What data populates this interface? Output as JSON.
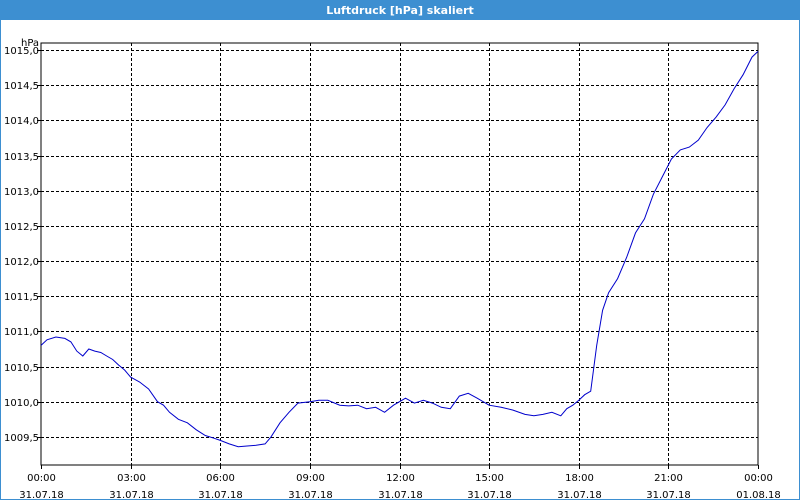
{
  "window": {
    "title": "Luftdruck [hPa] skaliert"
  },
  "colors": {
    "titlebar": "#3d8fd1",
    "series": "#0000cc",
    "grid": "#000000"
  },
  "chart_data": {
    "type": "line",
    "title": "Luftdruck [hPa] skaliert",
    "ylabel": "hPa",
    "xlabel": "",
    "ylim": [
      1009.1,
      1015.1
    ],
    "xlim": [
      0,
      24
    ],
    "grid": true,
    "y_ticks": [
      {
        "value": 1009.5,
        "label": "1009,5"
      },
      {
        "value": 1010.0,
        "label": "1010,0"
      },
      {
        "value": 1010.5,
        "label": "1010,5"
      },
      {
        "value": 1011.0,
        "label": "1011,0"
      },
      {
        "value": 1011.5,
        "label": "1011,5"
      },
      {
        "value": 1012.0,
        "label": "1012,0"
      },
      {
        "value": 1012.5,
        "label": "1012,5"
      },
      {
        "value": 1013.0,
        "label": "1013,0"
      },
      {
        "value": 1013.5,
        "label": "1013,5"
      },
      {
        "value": 1014.0,
        "label": "1014,0"
      },
      {
        "value": 1014.5,
        "label": "1014,5"
      },
      {
        "value": 1015.0,
        "label": "1015,0"
      }
    ],
    "x_ticks": [
      {
        "value": 0,
        "time": "00:00",
        "date": "31.07.18"
      },
      {
        "value": 3,
        "time": "03:00",
        "date": "31.07.18"
      },
      {
        "value": 6,
        "time": "06:00",
        "date": "31.07.18"
      },
      {
        "value": 9,
        "time": "09:00",
        "date": "31.07.18"
      },
      {
        "value": 12,
        "time": "12:00",
        "date": "31.07.18"
      },
      {
        "value": 15,
        "time": "15:00",
        "date": "31.07.18"
      },
      {
        "value": 18,
        "time": "18:00",
        "date": "31.07.18"
      },
      {
        "value": 21,
        "time": "21:00",
        "date": "31.07.18"
      },
      {
        "value": 24,
        "time": "00:00",
        "date": "01.08.18"
      }
    ],
    "series": [
      {
        "x": [
          0.0,
          0.2,
          0.5,
          0.8,
          1.0,
          1.2,
          1.4,
          1.6,
          1.8,
          2.0,
          2.2,
          2.4,
          2.6,
          2.8,
          3.0,
          3.3,
          3.6,
          3.9,
          4.1,
          4.3,
          4.6,
          4.9,
          5.2,
          5.5,
          5.8,
          6.0,
          6.3,
          6.6,
          6.9,
          7.2,
          7.5,
          7.7,
          8.0,
          8.3,
          8.6,
          9.0,
          9.3,
          9.6,
          10.0,
          10.3,
          10.6,
          10.9,
          11.2,
          11.5,
          11.8,
          12.2,
          12.5,
          12.8,
          13.1,
          13.4,
          13.7,
          14.0,
          14.3,
          14.6,
          15.0,
          15.4,
          15.8,
          16.2,
          16.5,
          16.8,
          17.1,
          17.4,
          17.6,
          17.8,
          18.0,
          18.2,
          18.4,
          18.6,
          18.8,
          19.0,
          19.3,
          19.6,
          19.9,
          20.2,
          20.5,
          20.8,
          21.1,
          21.4,
          21.7,
          22.0,
          22.3,
          22.6,
          22.9,
          23.2,
          23.5,
          23.8,
          24.0
        ],
        "values": [
          1010.8,
          1010.88,
          1010.92,
          1010.9,
          1010.85,
          1010.72,
          1010.65,
          1010.75,
          1010.72,
          1010.7,
          1010.65,
          1010.6,
          1010.52,
          1010.45,
          1010.35,
          1010.28,
          1010.18,
          1010.0,
          1009.95,
          1009.85,
          1009.75,
          1009.7,
          1009.6,
          1009.52,
          1009.48,
          1009.45,
          1009.4,
          1009.36,
          1009.37,
          1009.38,
          1009.4,
          1009.5,
          1009.7,
          1009.85,
          1009.98,
          1010.0,
          1010.02,
          1010.02,
          1009.95,
          1009.94,
          1009.95,
          1009.9,
          1009.92,
          1009.85,
          1009.95,
          1010.05,
          1009.98,
          1010.02,
          1009.98,
          1009.92,
          1009.9,
          1010.08,
          1010.12,
          1010.05,
          1009.95,
          1009.92,
          1009.88,
          1009.82,
          1009.8,
          1009.82,
          1009.85,
          1009.8,
          1009.9,
          1009.95,
          1010.02,
          1010.1,
          1010.15,
          1010.8,
          1011.3,
          1011.55,
          1011.75,
          1012.05,
          1012.4,
          1012.6,
          1012.95,
          1013.2,
          1013.45,
          1013.58,
          1013.62,
          1013.72,
          1013.9,
          1014.05,
          1014.22,
          1014.45,
          1014.65,
          1014.9,
          1014.98
        ]
      }
    ]
  }
}
